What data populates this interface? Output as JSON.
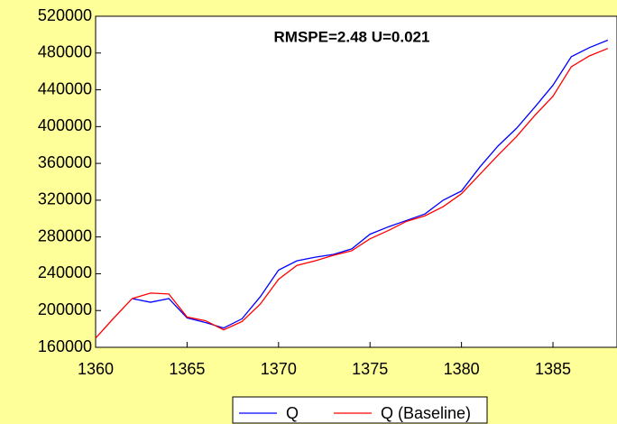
{
  "chart_data": {
    "type": "line",
    "annotation": "RMSPE=2.48   U=0.021",
    "x": [
      1360,
      1361,
      1362,
      1363,
      1364,
      1365,
      1366,
      1367,
      1368,
      1369,
      1370,
      1371,
      1372,
      1373,
      1374,
      1375,
      1376,
      1377,
      1378,
      1379,
      1380,
      1381,
      1382,
      1383,
      1384,
      1385,
      1386,
      1387,
      1388
    ],
    "series": [
      {
        "name": "Q",
        "color": "#0000ff",
        "values": [
          null,
          null,
          213000,
          209000,
          213000,
          192000,
          187000,
          181000,
          191000,
          215000,
          244000,
          254000,
          258000,
          261000,
          267000,
          283000,
          291000,
          298000,
          305000,
          320000,
          330000,
          356000,
          379000,
          398000,
          421000,
          445000,
          476000,
          486000,
          494000
        ]
      },
      {
        "name": "Q (Baseline)",
        "color": "#ff0000",
        "values": [
          170000,
          192000,
          213000,
          219000,
          218000,
          193000,
          189000,
          179000,
          188000,
          207000,
          234000,
          249000,
          254000,
          260000,
          265000,
          278000,
          287000,
          297000,
          303000,
          313000,
          327000,
          348000,
          369000,
          389000,
          412000,
          433000,
          465000,
          477000,
          485000
        ]
      }
    ],
    "xlim": [
      1360,
      1388.5
    ],
    "xticks": [
      1360,
      1365,
      1370,
      1375,
      1380,
      1385
    ],
    "ylim": [
      160000,
      520000
    ],
    "yticks": [
      160000,
      200000,
      240000,
      280000,
      320000,
      360000,
      400000,
      440000,
      480000,
      520000
    ]
  }
}
